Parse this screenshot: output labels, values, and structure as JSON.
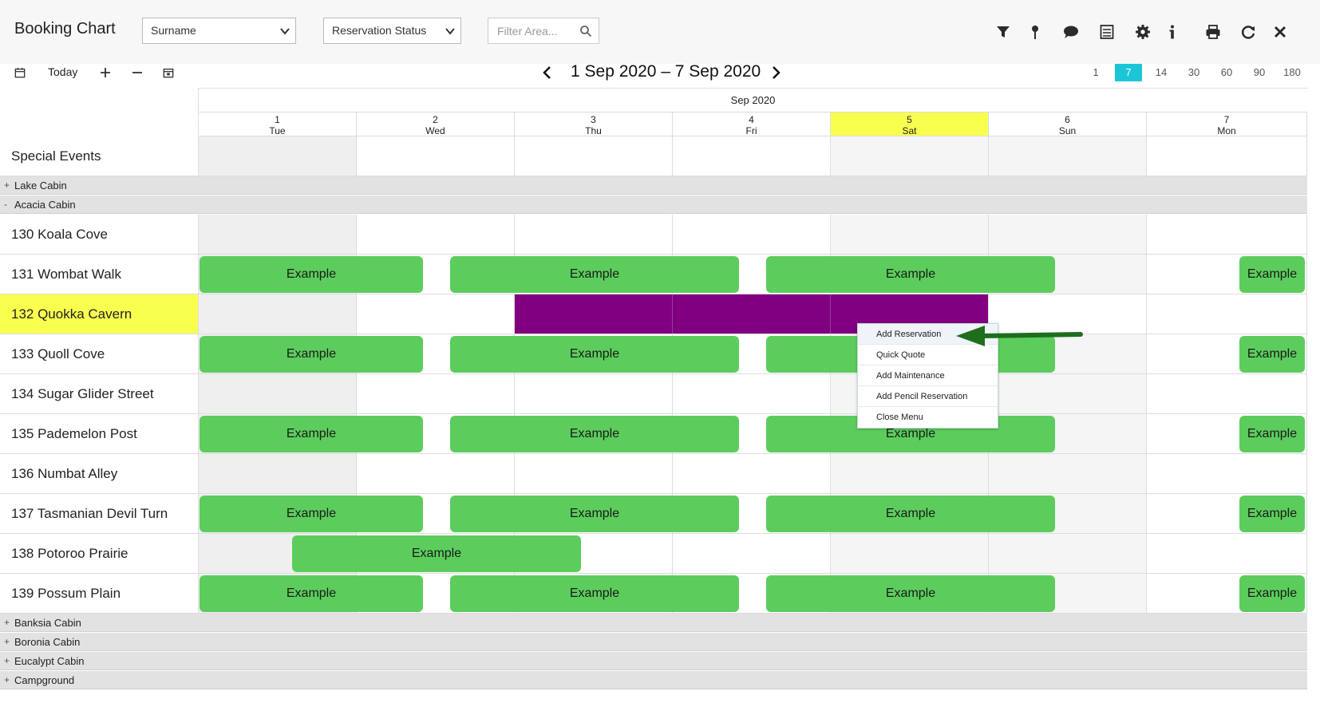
{
  "app": {
    "title": "Booking Chart"
  },
  "toolbar": {
    "sort_select": "Surname",
    "status_select": "Reservation Status",
    "filter_placeholder": "Filter Area...",
    "icons": [
      "filter-icon",
      "pin-icon",
      "comment-icon",
      "checklist-icon",
      "gear-icon",
      "info-icon",
      "print-icon",
      "refresh-icon",
      "close-icon"
    ]
  },
  "nav": {
    "today_label": "Today",
    "date_range": "1 Sep 2020 – 7 Sep 2020",
    "zoom_options": [
      "1",
      "7",
      "14",
      "30",
      "60",
      "90",
      "180"
    ],
    "zoom_selected": "7"
  },
  "calendar": {
    "month": "Sep 2020",
    "days": [
      {
        "num": "1",
        "dow": "Tue"
      },
      {
        "num": "2",
        "dow": "Wed"
      },
      {
        "num": "3",
        "dow": "Thu"
      },
      {
        "num": "4",
        "dow": "Fri"
      },
      {
        "num": "5",
        "dow": "Sat"
      },
      {
        "num": "6",
        "dow": "Sun"
      },
      {
        "num": "7",
        "dow": "Mon"
      }
    ],
    "highlight_day": "5"
  },
  "rows": {
    "special_events": "Special Events",
    "groups_top": [
      {
        "toggle": "+",
        "name": "Lake Cabin"
      },
      {
        "toggle": "-",
        "name": "Acacia Cabin"
      }
    ],
    "units": [
      "130 Koala Cove",
      "131 Wombat Walk",
      "132 Quokka Cavern",
      "133 Quoll Cove",
      "134 Sugar Glider Street",
      "135 Pademelon Post",
      "136 Numbat Alley",
      "137 Tasmanian Devil Turn",
      "138 Potoroo Prairie",
      "139 Possum Plain"
    ],
    "groups_bottom": [
      {
        "toggle": "+",
        "name": "Banksia Cabin"
      },
      {
        "toggle": "+",
        "name": "Boronia Cabin"
      },
      {
        "toggle": "+",
        "name": "Eucalypt Cabin"
      },
      {
        "toggle": "+",
        "name": "Campground"
      }
    ]
  },
  "booking_label": "Example",
  "context_menu": {
    "items": [
      "Add Reservation",
      "Quick Quote",
      "Add Maintenance",
      "Add Pencil Reservation",
      "Close Menu"
    ]
  },
  "colors": {
    "booking": "#5ccd5c",
    "selection": "#800080",
    "highlight": "#f9ff4f",
    "zoom_active": "#1cc6d6",
    "arrow": "#1e6e1e"
  }
}
